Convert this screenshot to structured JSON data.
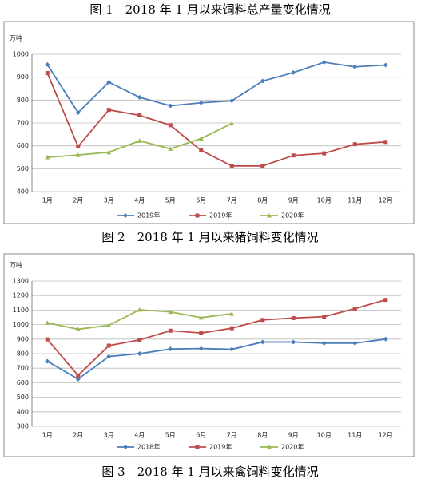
{
  "captions": [
    "图 1　2018 年 1 月以来饲料总产量变化情况",
    "图 2　2018 年 1 月以来猪饲料变化情况",
    "图 3　2018 年 1 月以来禽饲料变化情况"
  ],
  "chart_data": [
    {
      "type": "line",
      "y_label": "万吨",
      "categories": [
        "1月",
        "2月",
        "3月",
        "4月",
        "5月",
        "6月",
        "7月",
        "8月",
        "9月",
        "10月",
        "11月",
        "12月"
      ],
      "series": [
        {
          "name": "2019年",
          "color": "#4a7ebb",
          "marker": "diamond",
          "values": [
            955,
            745,
            878,
            812,
            775,
            788,
            797,
            883,
            920,
            965,
            945,
            953
          ]
        },
        {
          "name": "2019年",
          "color": "#be4b48",
          "marker": "square",
          "values": [
            918,
            597,
            757,
            733,
            690,
            580,
            512,
            512,
            558,
            567,
            607,
            617
          ]
        },
        {
          "name": "2020年",
          "color": "#98b954",
          "marker": "triangle",
          "values": [
            550,
            560,
            572,
            622,
            587,
            632,
            698,
            null,
            null,
            null,
            null,
            null
          ]
        }
      ],
      "ylim": [
        400,
        1000
      ],
      "yticks": [
        400,
        500,
        600,
        700,
        800,
        900,
        1000
      ],
      "grid": true,
      "legend": "bottom"
    },
    {
      "type": "line",
      "y_label": "万吨",
      "categories": [
        "1月",
        "2月",
        "3月",
        "4月",
        "5月",
        "6月",
        "7月",
        "8月",
        "9月",
        "10月",
        "11月",
        "12月"
      ],
      "series": [
        {
          "name": "2018年",
          "color": "#4a7ebb",
          "marker": "diamond",
          "values": [
            748,
            625,
            780,
            800,
            832,
            835,
            830,
            880,
            880,
            872,
            872,
            900
          ]
        },
        {
          "name": "2019年",
          "color": "#be4b48",
          "marker": "square",
          "values": [
            898,
            650,
            855,
            895,
            958,
            942,
            975,
            1032,
            1045,
            1055,
            1110,
            1170
          ]
        },
        {
          "name": "2020年",
          "color": "#98b954",
          "marker": "triangle",
          "values": [
            1012,
            968,
            995,
            1102,
            1088,
            1048,
            1075,
            null,
            null,
            null,
            null,
            null
          ]
        }
      ],
      "ylim": [
        300,
        1300
      ],
      "yticks": [
        300,
        400,
        500,
        600,
        700,
        800,
        900,
        1000,
        1100,
        1200,
        1300
      ],
      "grid": true,
      "legend": "bottom"
    }
  ]
}
